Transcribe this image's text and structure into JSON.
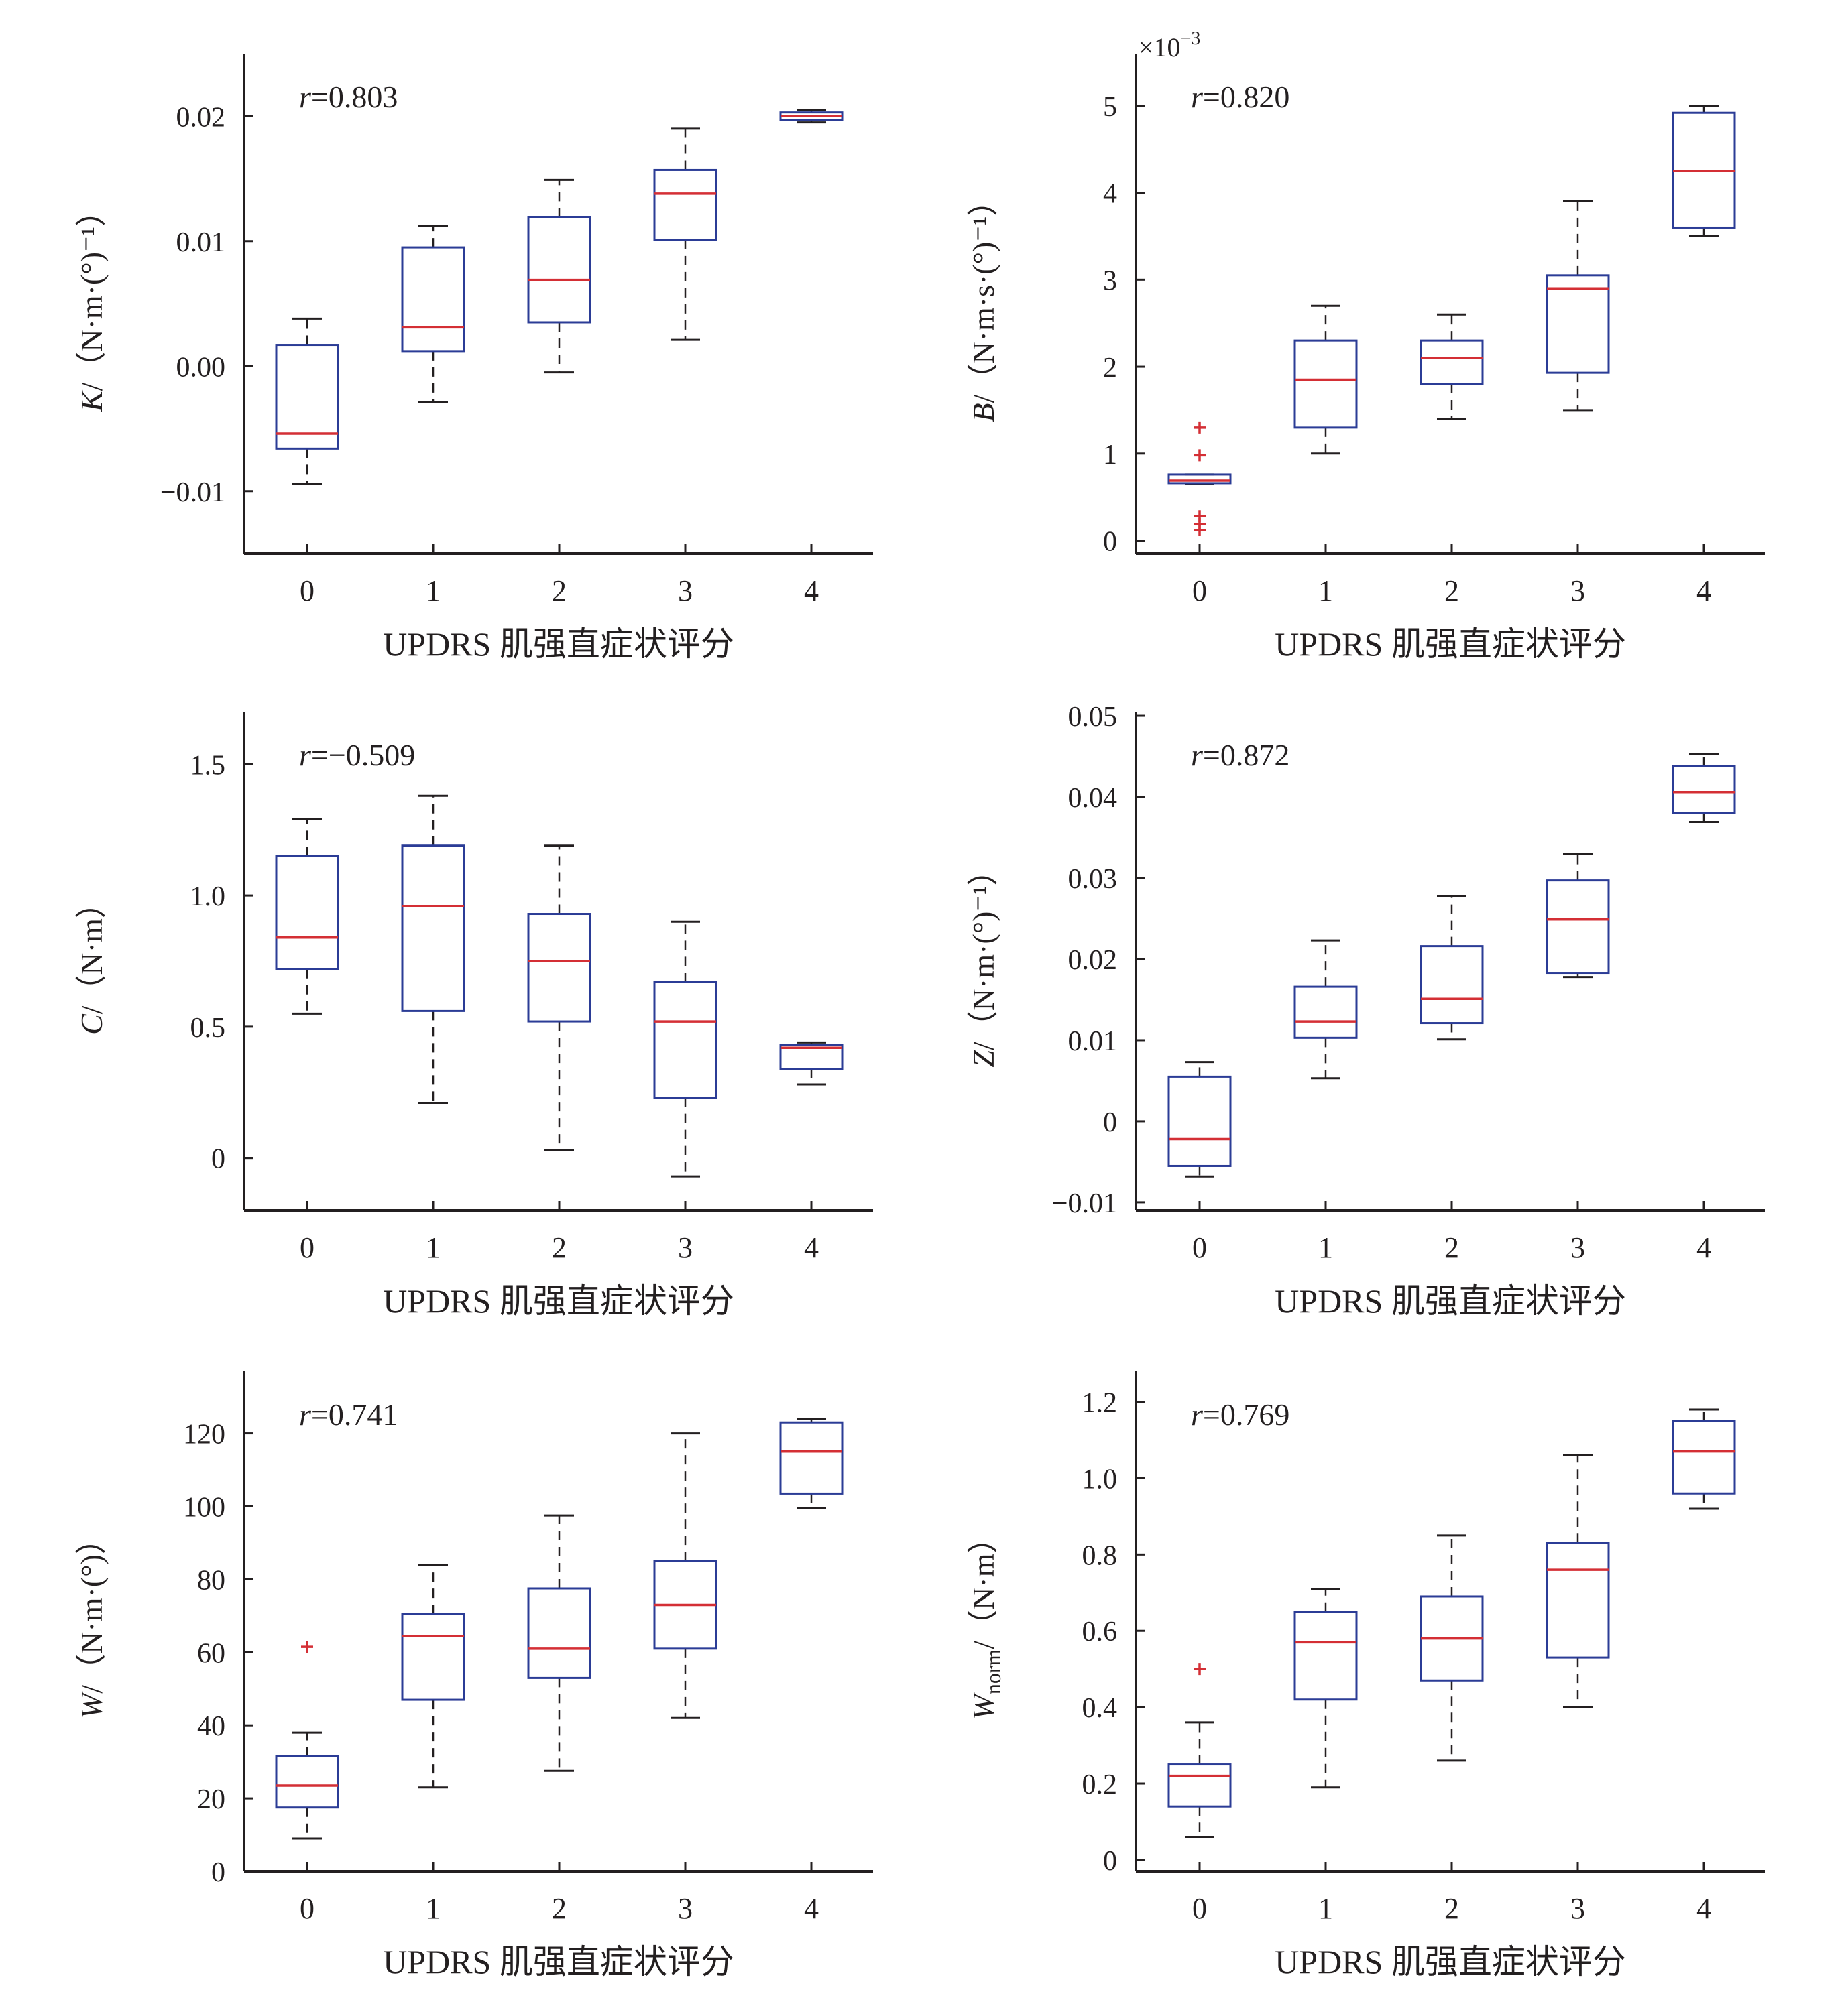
{
  "figure": {
    "colors": {
      "axis": "#231f20",
      "box": "#2b3c96",
      "median": "#d42f35",
      "outlier": "#d42f35",
      "whisker": "#231f20"
    }
  },
  "chart_data": [
    {
      "type": "box",
      "ylabel_symbol": "K",
      "ylabel_unit": "/（N·m·(°)⁻¹）",
      "xlabel": "UPDRS 肌强直症状评分",
      "annotation": "r=0.803",
      "ylim": [
        -0.015,
        0.025
      ],
      "yticks": [
        -0.01,
        0.0,
        0.01,
        0.02
      ],
      "ytick_labels": [
        "−0.01",
        "0.00",
        "0.01",
        "0.02"
      ],
      "categories": [
        "0",
        "1",
        "2",
        "3",
        "4"
      ],
      "boxes": [
        {
          "category": "0",
          "whisker_low": -0.0094,
          "q1": -0.0066,
          "median": -0.0054,
          "q3": 0.0017,
          "whisker_high": 0.0038,
          "outliers": []
        },
        {
          "category": "1",
          "whisker_low": -0.0029,
          "q1": 0.0012,
          "median": 0.0031,
          "q3": 0.0095,
          "whisker_high": 0.0112,
          "outliers": []
        },
        {
          "category": "2",
          "whisker_low": -0.0005,
          "q1": 0.0035,
          "median": 0.0069,
          "q3": 0.0119,
          "whisker_high": 0.0149,
          "outliers": []
        },
        {
          "category": "3",
          "whisker_low": 0.0021,
          "q1": 0.0101,
          "median": 0.0138,
          "q3": 0.0157,
          "whisker_high": 0.019,
          "outliers": []
        },
        {
          "category": "4",
          "whisker_low": 0.0195,
          "q1": 0.0197,
          "median": 0.02,
          "q3": 0.0203,
          "whisker_high": 0.0205,
          "outliers": []
        }
      ]
    },
    {
      "type": "box",
      "ylabel_symbol": "B",
      "ylabel_unit": "/（N·m·s·(°)⁻¹）",
      "xlabel": "UPDRS 肌强直症状评分",
      "annotation": "r=0.820",
      "exponent": "×10",
      "exponent_power": "−3",
      "ylim": [
        -0.15,
        5.6
      ],
      "yticks": [
        0,
        1,
        2,
        3,
        4,
        5
      ],
      "ytick_labels": [
        "0",
        "1",
        "2",
        "3",
        "4",
        "5"
      ],
      "categories": [
        "0",
        "1",
        "2",
        "3",
        "4"
      ],
      "boxes": [
        {
          "category": "0",
          "whisker_low": 0.65,
          "q1": 0.66,
          "median": 0.69,
          "q3": 0.76,
          "whisker_high": 0.76,
          "outliers": [
            1.3,
            0.98,
            0.28,
            0.19,
            0.12
          ]
        },
        {
          "category": "1",
          "whisker_low": 1.0,
          "q1": 1.3,
          "median": 1.85,
          "q3": 2.3,
          "whisker_high": 2.7,
          "outliers": []
        },
        {
          "category": "2",
          "whisker_low": 1.4,
          "q1": 1.8,
          "median": 2.1,
          "q3": 2.3,
          "whisker_high": 2.6,
          "outliers": []
        },
        {
          "category": "3",
          "whisker_low": 1.5,
          "q1": 1.93,
          "median": 2.9,
          "q3": 3.05,
          "whisker_high": 3.9,
          "outliers": []
        },
        {
          "category": "4",
          "whisker_low": 3.5,
          "q1": 3.6,
          "median": 4.25,
          "q3": 4.92,
          "whisker_high": 5.0,
          "outliers": []
        }
      ]
    },
    {
      "type": "box",
      "ylabel_symbol": "C",
      "ylabel_unit": "/（N·m）",
      "xlabel": "UPDRS 肌强直症状评分",
      "annotation": "r=−0.509",
      "ylim": [
        -0.2,
        1.7
      ],
      "yticks": [
        0,
        0.5,
        1.0,
        1.5
      ],
      "ytick_labels": [
        "0",
        "0.5",
        "1.0",
        "1.5"
      ],
      "categories": [
        "0",
        "1",
        "2",
        "3",
        "4"
      ],
      "boxes": [
        {
          "category": "0",
          "whisker_low": 0.55,
          "q1": 0.72,
          "median": 0.84,
          "q3": 1.15,
          "whisker_high": 1.29,
          "outliers": []
        },
        {
          "category": "1",
          "whisker_low": 0.21,
          "q1": 0.56,
          "median": 0.96,
          "q3": 1.19,
          "whisker_high": 1.38,
          "outliers": []
        },
        {
          "category": "2",
          "whisker_low": 0.03,
          "q1": 0.52,
          "median": 0.75,
          "q3": 0.93,
          "whisker_high": 1.19,
          "outliers": []
        },
        {
          "category": "3",
          "whisker_low": -0.07,
          "q1": 0.23,
          "median": 0.52,
          "q3": 0.67,
          "whisker_high": 0.9,
          "outliers": []
        },
        {
          "category": "4",
          "whisker_low": 0.28,
          "q1": 0.34,
          "median": 0.42,
          "q3": 0.43,
          "whisker_high": 0.44,
          "outliers": []
        }
      ]
    },
    {
      "type": "box",
      "ylabel_symbol": "Z",
      "ylabel_unit": "/（N·m·(°)⁻¹）",
      "xlabel": "UPDRS 肌强直症状评分",
      "annotation": "r=0.872",
      "ylim": [
        -0.011,
        0.0505
      ],
      "yticks": [
        -0.01,
        0,
        0.01,
        0.02,
        0.03,
        0.04,
        0.05
      ],
      "ytick_labels": [
        "−0.01",
        "0",
        "0.01",
        "0.02",
        "0.03",
        "0.04",
        "0.05"
      ],
      "categories": [
        "0",
        "1",
        "2",
        "3",
        "4"
      ],
      "boxes": [
        {
          "category": "0",
          "whisker_low": -0.0068,
          "q1": -0.0055,
          "median": -0.0022,
          "q3": 0.0055,
          "whisker_high": 0.0073,
          "outliers": []
        },
        {
          "category": "1",
          "whisker_low": 0.0053,
          "q1": 0.0103,
          "median": 0.0123,
          "q3": 0.0166,
          "whisker_high": 0.0223,
          "outliers": []
        },
        {
          "category": "2",
          "whisker_low": 0.0101,
          "q1": 0.0121,
          "median": 0.0151,
          "q3": 0.0216,
          "whisker_high": 0.0278,
          "outliers": []
        },
        {
          "category": "3",
          "whisker_low": 0.0178,
          "q1": 0.0183,
          "median": 0.0249,
          "q3": 0.0297,
          "whisker_high": 0.033,
          "outliers": []
        },
        {
          "category": "4",
          "whisker_low": 0.0369,
          "q1": 0.038,
          "median": 0.0406,
          "q3": 0.0438,
          "whisker_high": 0.0453,
          "outliers": []
        }
      ]
    },
    {
      "type": "box",
      "ylabel_symbol": "W",
      "ylabel_unit": "/（N·m·(°)）",
      "xlabel": "UPDRS 肌强直症状评分",
      "annotation": "r=0.741",
      "ylim": [
        0,
        137
      ],
      "yticks": [
        0,
        20,
        40,
        60,
        80,
        100,
        120
      ],
      "ytick_labels": [
        "0",
        "20",
        "40",
        "60",
        "80",
        "100",
        "120"
      ],
      "categories": [
        "0",
        "1",
        "2",
        "3",
        "4"
      ],
      "boxes": [
        {
          "category": "0",
          "whisker_low": 9,
          "q1": 17.5,
          "median": 23.5,
          "q3": 31.5,
          "whisker_high": 38,
          "outliers": [
            61.5
          ]
        },
        {
          "category": "1",
          "whisker_low": 23,
          "q1": 47,
          "median": 64.5,
          "q3": 70.5,
          "whisker_high": 84,
          "outliers": []
        },
        {
          "category": "2",
          "whisker_low": 27.5,
          "q1": 53,
          "median": 61,
          "q3": 77.5,
          "whisker_high": 97.5,
          "outliers": []
        },
        {
          "category": "3",
          "whisker_low": 42,
          "q1": 61,
          "median": 73,
          "q3": 85,
          "whisker_high": 120,
          "outliers": []
        },
        {
          "category": "4",
          "whisker_low": 99.5,
          "q1": 103.5,
          "median": 115,
          "q3": 123,
          "whisker_high": 124,
          "outliers": []
        }
      ]
    },
    {
      "type": "box",
      "ylabel_symbol": "W",
      "ylabel_sub": "norm",
      "ylabel_unit": "/（N·m）",
      "xlabel": "UPDRS 肌强直症状评分",
      "annotation": "r=0.769",
      "ylim": [
        -0.03,
        1.28
      ],
      "yticks": [
        0,
        0.2,
        0.4,
        0.6,
        0.8,
        1.0,
        1.2
      ],
      "ytick_labels": [
        "0",
        "0.2",
        "0.4",
        "0.6",
        "0.8",
        "1.0",
        "1.2"
      ],
      "categories": [
        "0",
        "1",
        "2",
        "3",
        "4"
      ],
      "boxes": [
        {
          "category": "0",
          "whisker_low": 0.06,
          "q1": 0.14,
          "median": 0.22,
          "q3": 0.25,
          "whisker_high": 0.36,
          "outliers": [
            0.5
          ]
        },
        {
          "category": "1",
          "whisker_low": 0.19,
          "q1": 0.42,
          "median": 0.57,
          "q3": 0.65,
          "whisker_high": 0.71,
          "outliers": []
        },
        {
          "category": "2",
          "whisker_low": 0.26,
          "q1": 0.47,
          "median": 0.58,
          "q3": 0.69,
          "whisker_high": 0.85,
          "outliers": []
        },
        {
          "category": "3",
          "whisker_low": 0.4,
          "q1": 0.53,
          "median": 0.76,
          "q3": 0.83,
          "whisker_high": 1.06,
          "outliers": []
        },
        {
          "category": "4",
          "whisker_low": 0.92,
          "q1": 0.96,
          "median": 1.07,
          "q3": 1.15,
          "whisker_h‌igh": 1.18,
          "whisker_high": 1.18,
          "outliers": []
        }
      ]
    }
  ]
}
